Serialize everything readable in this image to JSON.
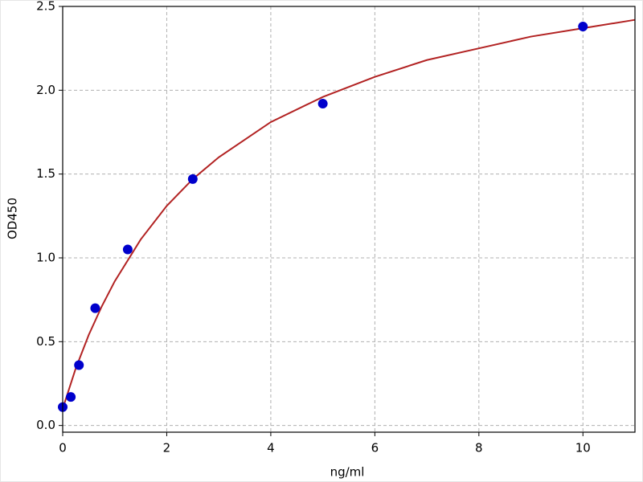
{
  "chart_data": {
    "type": "scatter",
    "xlabel": "ng/ml",
    "ylabel": "OD450",
    "x": [
      0,
      0.156,
      0.3125,
      0.625,
      1.25,
      2.5,
      5,
      10
    ],
    "values": [
      0.11,
      0.17,
      0.36,
      0.7,
      1.05,
      1.47,
      1.92,
      2.38
    ],
    "color": "#0000cc",
    "fit": {
      "type": "line",
      "color": "#b22222",
      "x": [
        0,
        0.25,
        0.5,
        0.75,
        1,
        1.5,
        2,
        2.5,
        3,
        4,
        5,
        6,
        7,
        8,
        9,
        10,
        11
      ],
      "values": [
        0.1,
        0.34,
        0.54,
        0.71,
        0.86,
        1.11,
        1.31,
        1.47,
        1.6,
        1.81,
        1.96,
        2.08,
        2.18,
        2.25,
        2.32,
        2.37,
        2.42
      ]
    },
    "xlim": [
      0,
      11
    ],
    "ylim": [
      -0.04,
      2.5
    ],
    "xticks": [
      0,
      2,
      4,
      6,
      8,
      10
    ],
    "yticks": [
      {
        "value": 0,
        "label": "0.0"
      },
      {
        "value": 0.5,
        "label": "0.5"
      },
      {
        "value": 1,
        "label": "1.0"
      },
      {
        "value": 1.5,
        "label": "1.5"
      },
      {
        "value": 2,
        "label": "2.0"
      },
      {
        "value": 2.5,
        "label": "2.5"
      }
    ],
    "grid": true
  }
}
